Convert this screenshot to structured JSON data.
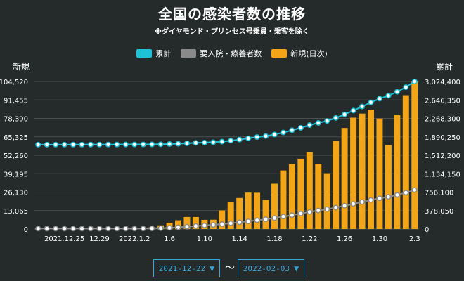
{
  "header": {
    "title": "全国の感染者数の推移",
    "subtitle": "※ダイヤモンド・プリンセス号乗員・乗客を除く"
  },
  "legend": [
    {
      "label": "累計",
      "color": "#1ec1d6"
    },
    {
      "label": "要入院・療養者数",
      "color": "#8a8a8a"
    },
    {
      "label": "新規(日次)",
      "color": "#f2a516"
    }
  ],
  "axes": {
    "left_title": "新規",
    "right_title": "累計"
  },
  "date_range": {
    "start": "2021-12-22",
    "end": "2022-02-03",
    "separator": "〜",
    "dropdown_glyph": "▼"
  },
  "chart_data": {
    "type": "bar",
    "x": [
      "2021.12.22",
      "2021.12.23",
      "2021.12.24",
      "2021.12.25",
      "2021.12.26",
      "2021.12.27",
      "2021.12.28",
      "2021.12.29",
      "2021.12.30",
      "2021.12.31",
      "2022.1.1",
      "2022.1.2",
      "2022.1.3",
      "2022.1.4",
      "2022.1.5",
      "2022.1.6",
      "2022.1.7",
      "2022.1.8",
      "2022.1.9",
      "2022.1.10",
      "2022.1.11",
      "2022.1.12",
      "2022.1.13",
      "2022.1.14",
      "2022.1.15",
      "2022.1.16",
      "2022.1.17",
      "2022.1.18",
      "2022.1.19",
      "2022.1.20",
      "2022.1.21",
      "2022.1.22",
      "2022.1.23",
      "2022.1.24",
      "2022.1.25",
      "2022.1.26",
      "2022.1.27",
      "2022.1.28",
      "2022.1.29",
      "2022.1.30",
      "2022.1.31",
      "2022.2.1",
      "2022.2.2",
      "2022.2.3"
    ],
    "x_tick_labels": [
      {
        "i": 3,
        "label": "2021.12.25"
      },
      {
        "i": 7,
        "label": "12.29"
      },
      {
        "i": 11,
        "label": "2022.1.2"
      },
      {
        "i": 15,
        "label": "1.6"
      },
      {
        "i": 19,
        "label": "1.10"
      },
      {
        "i": 23,
        "label": "1.14"
      },
      {
        "i": 27,
        "label": "1.18"
      },
      {
        "i": 31,
        "label": "1.22"
      },
      {
        "i": 35,
        "label": "1.26"
      },
      {
        "i": 39,
        "label": "1.30"
      },
      {
        "i": 43,
        "label": "2.3"
      }
    ],
    "series": [
      {
        "name": "新規(日次)",
        "type": "bar",
        "axis": "left",
        "color": "#f2a516",
        "values": [
          200,
          300,
          300,
          300,
          250,
          250,
          400,
          450,
          400,
          500,
          550,
          550,
          700,
          1300,
          2600,
          4500,
          6200,
          8500,
          8500,
          6500,
          6600,
          13200,
          18900,
          22000,
          25800,
          25700,
          20600,
          32100,
          41500,
          46100,
          49800,
          54500,
          46200,
          39500,
          62600,
          71600,
          78900,
          81800,
          84600,
          78300,
          59500,
          80700,
          94800,
          104520
        ]
      },
      {
        "name": "累計",
        "type": "line",
        "axis": "right",
        "color": "#1ec1d6",
        "values": [
          1730000,
          1730300,
          1730600,
          1730900,
          1731200,
          1731400,
          1731800,
          1732200,
          1732600,
          1733100,
          1733700,
          1734200,
          1734900,
          1736200,
          1738800,
          1743300,
          1749500,
          1758000,
          1766500,
          1773000,
          1779600,
          1792800,
          1811700,
          1833700,
          1859500,
          1885200,
          1905800,
          1937900,
          1979400,
          2025500,
          2075300,
          2129800,
          2176000,
          2215500,
          2278100,
          2349700,
          2428600,
          2510400,
          2595000,
          2673300,
          2732800,
          2813500,
          2908300,
          3024400
        ]
      },
      {
        "name": "要入院・療養者数",
        "type": "line",
        "axis": "right",
        "color": "#8a8a8a",
        "values": [
          10000,
          10000,
          10000,
          10000,
          10000,
          10000,
          10000,
          10000,
          10000,
          10000,
          10000,
          10000,
          12000,
          14000,
          18000,
          25000,
          35000,
          48000,
          62000,
          74000,
          86000,
          100000,
          118000,
          138000,
          158000,
          180000,
          200000,
          225000,
          255000,
          285000,
          318000,
          350000,
          380000,
          408000,
          440000,
          478000,
          515000,
          555000,
          595000,
          630000,
          660000,
          700000,
          745000,
          800000
        ]
      }
    ],
    "left_axis": {
      "min": 0,
      "max": 104520,
      "ticks": [
        "0",
        "13,065",
        "26,130",
        "39,195",
        "52,260",
        "65,325",
        "78,390",
        "91,455",
        "104,520"
      ]
    },
    "right_axis": {
      "min": 0,
      "max": 3024400,
      "ticks": [
        "0",
        "378,050",
        "756,100",
        "1,134,150",
        "1,512,200",
        "1,890,250",
        "2,268,300",
        "2,646,350",
        "3,024,400"
      ]
    },
    "grid": true,
    "legend_position": "top"
  }
}
